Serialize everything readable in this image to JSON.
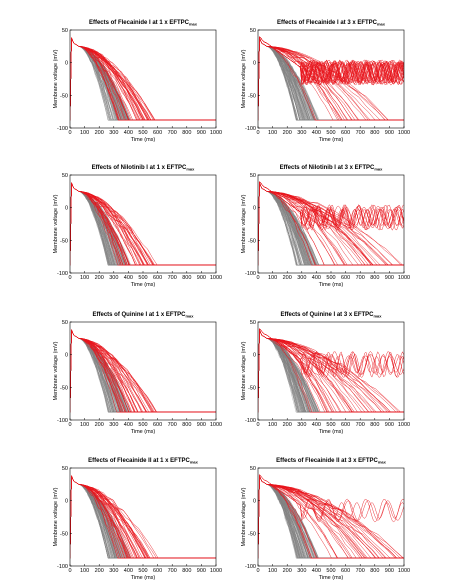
{
  "chart_data": [
    {
      "type": "line",
      "title": "Effects of Flecainide I at 1 x EFTPC",
      "title_sub": "max",
      "xlabel": "Time (ms)",
      "ylabel": "Membrane voltage (mV)",
      "xlim": [
        0,
        1000
      ],
      "ylim": [
        -100,
        50
      ],
      "xticks": [
        "0",
        "100",
        "200",
        "300",
        "400",
        "500",
        "600",
        "700",
        "800",
        "900",
        "1000"
      ],
      "yticks": [
        "50",
        "0",
        "-50",
        "-100"
      ],
      "series": [
        {
          "color": "#808080",
          "count": 100,
          "end_ms": [
            260,
            420
          ],
          "pattern": "control"
        },
        {
          "color": "#e8141b",
          "count": 40,
          "end_ms": [
            320,
            610
          ],
          "pattern": "repolarizing"
        }
      ]
    },
    {
      "type": "line",
      "title": "Effects of Flecainide I at 3 x EFTPC",
      "title_sub": "max",
      "xlabel": "Time (ms)",
      "ylabel": "Membrane voltage (mV)",
      "xlim": [
        0,
        1000
      ],
      "ylim": [
        -100,
        50
      ],
      "xticks": [
        "0",
        "100",
        "200",
        "300",
        "400",
        "500",
        "600",
        "700",
        "800",
        "900",
        "1000"
      ],
      "yticks": [
        "50",
        "0",
        "-50",
        "-100"
      ],
      "series": [
        {
          "color": "#808080",
          "count": 100,
          "end_ms": [
            260,
            420
          ],
          "pattern": "control"
        },
        {
          "color": "#e8141b",
          "count": 25,
          "end_ms": [
            380,
            900
          ],
          "pattern": "repolarizing"
        },
        {
          "color": "#e8141b",
          "count": 25,
          "end_ms": [],
          "pattern": "oscillating"
        }
      ]
    },
    {
      "type": "line",
      "title": "Effects of Nilotinib I at 1 x EFTPC",
      "title_sub": "max",
      "xlabel": "Time (ms)",
      "ylabel": "Membrane voltage (mV)",
      "xlim": [
        0,
        1000
      ],
      "ylim": [
        -100,
        50
      ],
      "xticks": [
        "0",
        "100",
        "200",
        "300",
        "400",
        "500",
        "600",
        "700",
        "800",
        "900",
        "1000"
      ],
      "yticks": [
        "50",
        "0",
        "-50",
        "-100"
      ],
      "series": [
        {
          "color": "#808080",
          "count": 100,
          "end_ms": [
            260,
            420
          ],
          "pattern": "control"
        },
        {
          "color": "#e8141b",
          "count": 40,
          "end_ms": [
            320,
            600
          ],
          "pattern": "repolarizing"
        }
      ]
    },
    {
      "type": "line",
      "title": "Effects of Nilotinib I at 3 x EFTPC",
      "title_sub": "max",
      "xlabel": "Time (ms)",
      "ylabel": "Membrane voltage (mV)",
      "xlim": [
        0,
        1000
      ],
      "ylim": [
        -100,
        50
      ],
      "xticks": [
        "0",
        "100",
        "200",
        "300",
        "400",
        "500",
        "600",
        "700",
        "800",
        "900",
        "1000"
      ],
      "yticks": [
        "50",
        "0",
        "-50",
        "-100"
      ],
      "series": [
        {
          "color": "#808080",
          "count": 100,
          "end_ms": [
            260,
            420
          ],
          "pattern": "control"
        },
        {
          "color": "#e8141b",
          "count": 35,
          "end_ms": [
            350,
            1000
          ],
          "pattern": "repolarizing"
        },
        {
          "color": "#e8141b",
          "count": 10,
          "end_ms": [],
          "pattern": "oscillating"
        }
      ]
    },
    {
      "type": "line",
      "title": "Effects of Quinine I at 1 x EFTPC",
      "title_sub": "max",
      "xlabel": "Time (ms)",
      "ylabel": "Membrane voltage (mV)",
      "xlim": [
        0,
        1000
      ],
      "ylim": [
        -100,
        50
      ],
      "xticks": [
        "0",
        "100",
        "200",
        "300",
        "400",
        "500",
        "600",
        "700",
        "800",
        "900",
        "1000"
      ],
      "yticks": [
        "50",
        "0",
        "-50",
        "-100"
      ],
      "series": [
        {
          "color": "#808080",
          "count": 100,
          "end_ms": [
            260,
            420
          ],
          "pattern": "control"
        },
        {
          "color": "#e8141b",
          "count": 40,
          "end_ms": [
            320,
            600
          ],
          "pattern": "repolarizing"
        }
      ]
    },
    {
      "type": "line",
      "title": "Effects of Quinine I at 3 x EFTPC",
      "title_sub": "max",
      "xlabel": "Time (ms)",
      "ylabel": "Membrane voltage (mV)",
      "xlim": [
        0,
        1000
      ],
      "ylim": [
        -100,
        50
      ],
      "xticks": [
        "0",
        "100",
        "200",
        "300",
        "400",
        "500",
        "600",
        "700",
        "800",
        "900",
        "1000"
      ],
      "yticks": [
        "50",
        "0",
        "-50",
        "-100"
      ],
      "series": [
        {
          "color": "#808080",
          "count": 100,
          "end_ms": [
            260,
            420
          ],
          "pattern": "control"
        },
        {
          "color": "#e8141b",
          "count": 38,
          "end_ms": [
            350,
            1000
          ],
          "pattern": "repolarizing"
        },
        {
          "color": "#e8141b",
          "count": 6,
          "end_ms": [],
          "pattern": "oscillating"
        }
      ]
    },
    {
      "type": "line",
      "title": "Effects of Flecainide II at 1 x EFTPC",
      "title_sub": "max",
      "xlabel": "Time (ms)",
      "ylabel": "Membrane voltage (mV)",
      "xlim": [
        0,
        1000
      ],
      "ylim": [
        -100,
        50
      ],
      "xticks": [
        "0",
        "100",
        "200",
        "300",
        "400",
        "500",
        "600",
        "700",
        "800",
        "900",
        "1000"
      ],
      "yticks": [
        "50",
        "0",
        "-50",
        "-100"
      ],
      "series": [
        {
          "color": "#808080",
          "count": 100,
          "end_ms": [
            260,
            420
          ],
          "pattern": "control"
        },
        {
          "color": "#e8141b",
          "count": 40,
          "end_ms": [
            320,
            610
          ],
          "pattern": "repolarizing"
        }
      ]
    },
    {
      "type": "line",
      "title": "Effects of Flecainide II at 3 x EFTPC",
      "title_sub": "max",
      "xlabel": "Time (ms)",
      "ylabel": "Membrane voltage (mV)",
      "xlim": [
        0,
        1000
      ],
      "ylim": [
        -100,
        50
      ],
      "xticks": [
        "0",
        "100",
        "200",
        "300",
        "400",
        "500",
        "600",
        "700",
        "800",
        "900",
        "1000"
      ],
      "yticks": [
        "50",
        "0",
        "-50",
        "-100"
      ],
      "series": [
        {
          "color": "#808080",
          "count": 100,
          "end_ms": [
            260,
            420
          ],
          "pattern": "control"
        },
        {
          "color": "#e8141b",
          "count": 38,
          "end_ms": [
            350,
            1000
          ],
          "pattern": "repolarizing"
        },
        {
          "color": "#e8141b",
          "count": 3,
          "end_ms": [],
          "pattern": "oscillating"
        }
      ]
    }
  ]
}
